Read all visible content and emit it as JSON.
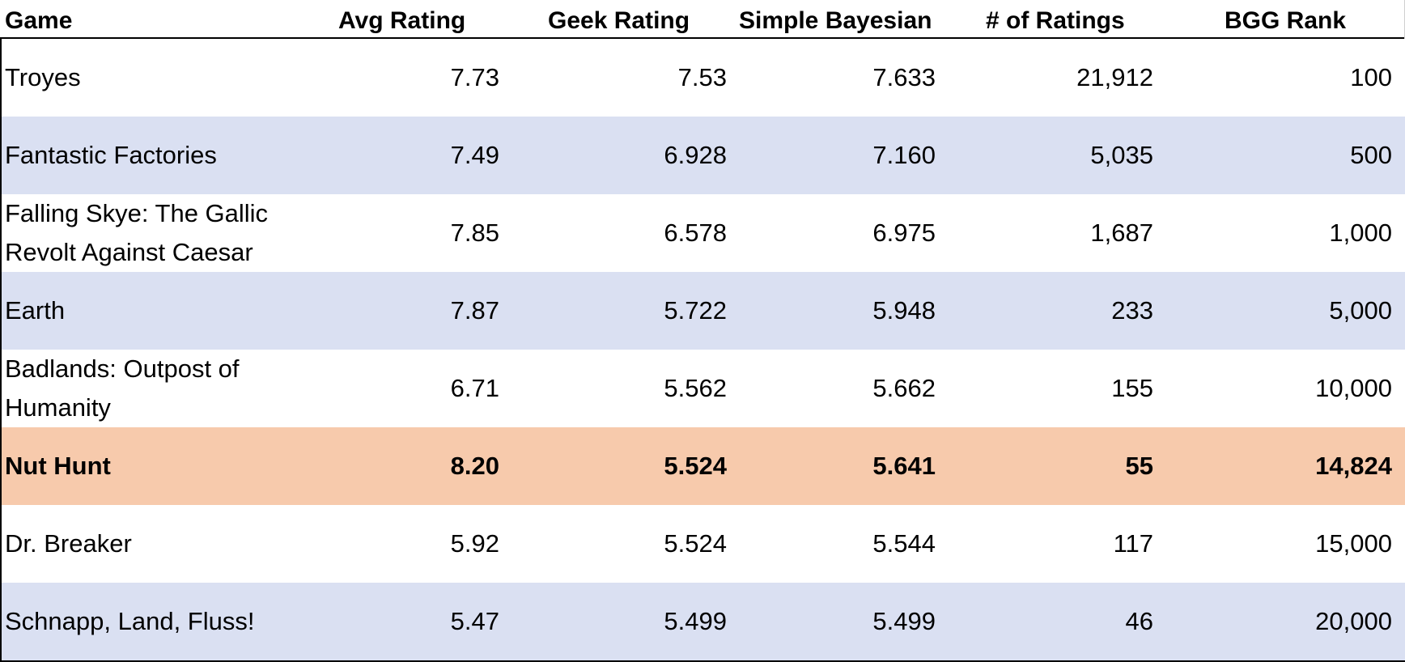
{
  "headers": {
    "game": "Game",
    "avg_rating": "Avg Rating",
    "geek_rating": "Geek Rating",
    "simple_bayesian": "Simple Bayesian",
    "num_ratings": "# of Ratings",
    "bgg_rank": "BGG Rank"
  },
  "rows": [
    {
      "game": "Troyes",
      "avg_rating": "7.73",
      "geek_rating": "7.53",
      "simple_bayesian": "7.633",
      "num_ratings": "21,912",
      "bgg_rank": "100",
      "style": "plain"
    },
    {
      "game": "Fantastic Factories",
      "avg_rating": "7.49",
      "geek_rating": "6.928",
      "simple_bayesian": "7.160",
      "num_ratings": "5,035",
      "bgg_rank": "500",
      "style": "shaded"
    },
    {
      "game": "Falling Skye: The Gallic Revolt Against Caesar",
      "avg_rating": "7.85",
      "geek_rating": "6.578",
      "simple_bayesian": "6.975",
      "num_ratings": "1,687",
      "bgg_rank": "1,000",
      "style": "plain"
    },
    {
      "game": "Earth",
      "avg_rating": "7.87",
      "geek_rating": "5.722",
      "simple_bayesian": "5.948",
      "num_ratings": "233",
      "bgg_rank": "5,000",
      "style": "shaded"
    },
    {
      "game": "Badlands: Outpost of Humanity",
      "avg_rating": "6.71",
      "geek_rating": "5.562",
      "simple_bayesian": "5.662",
      "num_ratings": "155",
      "bgg_rank": "10,000",
      "style": "plain"
    },
    {
      "game": "Nut Hunt",
      "avg_rating": "8.20",
      "geek_rating": "5.524",
      "simple_bayesian": "5.641",
      "num_ratings": "55",
      "bgg_rank": "14,824",
      "style": "highlight"
    },
    {
      "game": "Dr. Breaker",
      "avg_rating": "5.92",
      "geek_rating": "5.524",
      "simple_bayesian": "5.544",
      "num_ratings": "117",
      "bgg_rank": "15,000",
      "style": "plain"
    },
    {
      "game": "Schnapp, Land, Fluss!",
      "avg_rating": "5.47",
      "geek_rating": "5.499",
      "simple_bayesian": "5.499",
      "num_ratings": "46",
      "bgg_rank": "20,000",
      "style": "shaded"
    }
  ],
  "colors": {
    "shaded_row": "#dae0f2",
    "highlight_row": "#f7caac",
    "border": "#000000"
  }
}
